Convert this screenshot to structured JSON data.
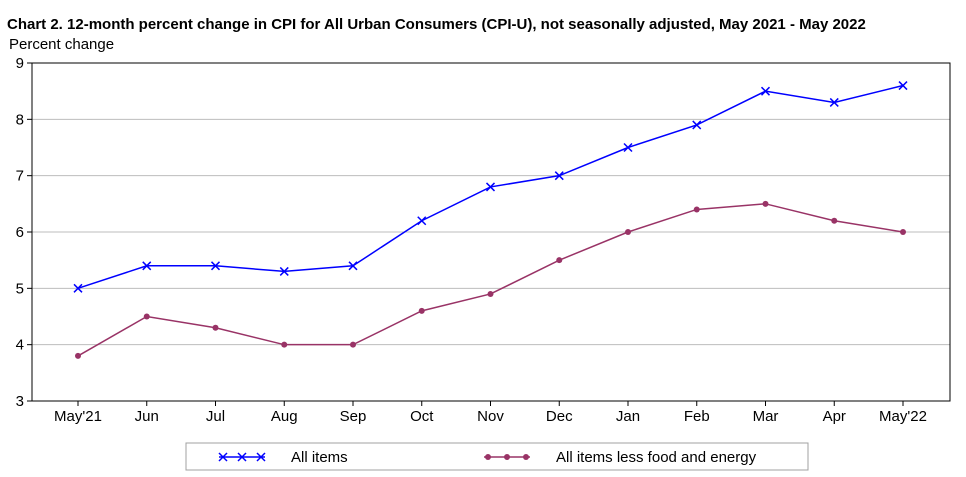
{
  "title": "Chart 2. 12-month percent change in CPI for All Urban Consumers (CPI-U), not seasonally adjusted, May 2021 - May 2022",
  "chart_data": {
    "type": "line",
    "title": "Chart 2. 12-month percent change in CPI for All Urban Consumers (CPI-U), not seasonally adjusted, May 2021 - May 2022",
    "xlabel": "",
    "ylabel": "Percent change",
    "categories": [
      "May'21",
      "Jun",
      "Jul",
      "Aug",
      "Sep",
      "Oct",
      "Nov",
      "Dec",
      "Jan",
      "Feb",
      "Mar",
      "Apr",
      "May'22"
    ],
    "ylim": [
      3,
      9
    ],
    "yticks": [
      3,
      4,
      5,
      6,
      7,
      8,
      9
    ],
    "grid": true,
    "legend_position": "bottom",
    "series": [
      {
        "name": "All items",
        "color": "#0000ff",
        "marker": "x",
        "values": [
          5.0,
          5.4,
          5.4,
          5.3,
          5.4,
          6.2,
          6.8,
          7.0,
          7.5,
          7.9,
          8.5,
          8.3,
          8.6
        ]
      },
      {
        "name": "All items less food and energy",
        "color": "#993366",
        "marker": "circle",
        "values": [
          3.8,
          4.5,
          4.3,
          4.0,
          4.0,
          4.6,
          4.9,
          5.5,
          6.0,
          6.4,
          6.5,
          6.2,
          6.0
        ]
      }
    ]
  }
}
